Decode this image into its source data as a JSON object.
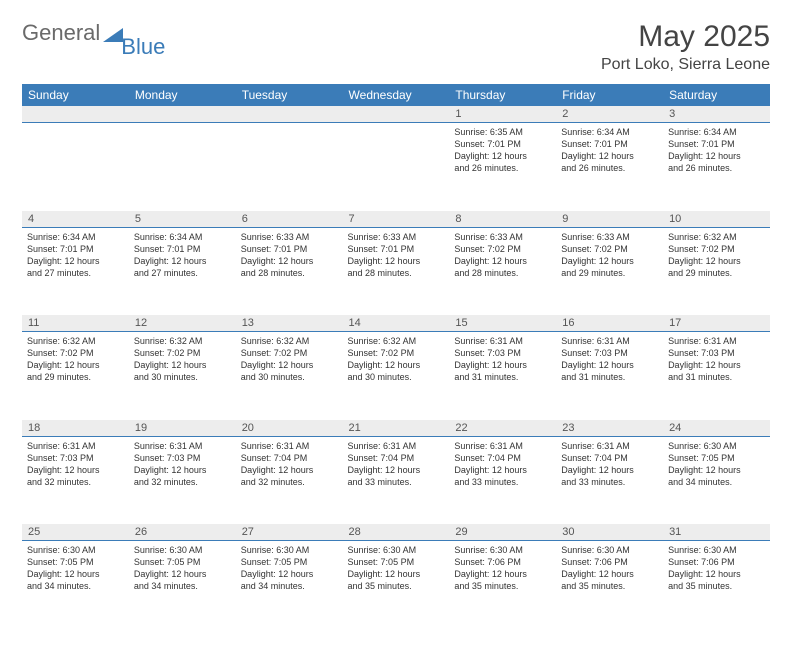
{
  "brand": {
    "part1": "General",
    "part2": "Blue"
  },
  "title": "May 2025",
  "location": "Port Loko, Sierra Leone",
  "colors": {
    "header_bg": "#3b7cb8",
    "header_fg": "#ffffff",
    "daynum_bg": "#ededed",
    "rule": "#3b7cb8",
    "text": "#333333",
    "brand_gray": "#6a6a6a",
    "brand_blue": "#3b7cb8"
  },
  "weekdays": [
    "Sunday",
    "Monday",
    "Tuesday",
    "Wednesday",
    "Thursday",
    "Friday",
    "Saturday"
  ],
  "weeks": [
    {
      "nums": [
        "",
        "",
        "",
        "",
        "1",
        "2",
        "3"
      ],
      "cells": [
        null,
        null,
        null,
        null,
        {
          "sunrise": "Sunrise: 6:35 AM",
          "sunset": "Sunset: 7:01 PM",
          "day1": "Daylight: 12 hours",
          "day2": "and 26 minutes."
        },
        {
          "sunrise": "Sunrise: 6:34 AM",
          "sunset": "Sunset: 7:01 PM",
          "day1": "Daylight: 12 hours",
          "day2": "and 26 minutes."
        },
        {
          "sunrise": "Sunrise: 6:34 AM",
          "sunset": "Sunset: 7:01 PM",
          "day1": "Daylight: 12 hours",
          "day2": "and 26 minutes."
        }
      ]
    },
    {
      "nums": [
        "4",
        "5",
        "6",
        "7",
        "8",
        "9",
        "10"
      ],
      "cells": [
        {
          "sunrise": "Sunrise: 6:34 AM",
          "sunset": "Sunset: 7:01 PM",
          "day1": "Daylight: 12 hours",
          "day2": "and 27 minutes."
        },
        {
          "sunrise": "Sunrise: 6:34 AM",
          "sunset": "Sunset: 7:01 PM",
          "day1": "Daylight: 12 hours",
          "day2": "and 27 minutes."
        },
        {
          "sunrise": "Sunrise: 6:33 AM",
          "sunset": "Sunset: 7:01 PM",
          "day1": "Daylight: 12 hours",
          "day2": "and 28 minutes."
        },
        {
          "sunrise": "Sunrise: 6:33 AM",
          "sunset": "Sunset: 7:01 PM",
          "day1": "Daylight: 12 hours",
          "day2": "and 28 minutes."
        },
        {
          "sunrise": "Sunrise: 6:33 AM",
          "sunset": "Sunset: 7:02 PM",
          "day1": "Daylight: 12 hours",
          "day2": "and 28 minutes."
        },
        {
          "sunrise": "Sunrise: 6:33 AM",
          "sunset": "Sunset: 7:02 PM",
          "day1": "Daylight: 12 hours",
          "day2": "and 29 minutes."
        },
        {
          "sunrise": "Sunrise: 6:32 AM",
          "sunset": "Sunset: 7:02 PM",
          "day1": "Daylight: 12 hours",
          "day2": "and 29 minutes."
        }
      ]
    },
    {
      "nums": [
        "11",
        "12",
        "13",
        "14",
        "15",
        "16",
        "17"
      ],
      "cells": [
        {
          "sunrise": "Sunrise: 6:32 AM",
          "sunset": "Sunset: 7:02 PM",
          "day1": "Daylight: 12 hours",
          "day2": "and 29 minutes."
        },
        {
          "sunrise": "Sunrise: 6:32 AM",
          "sunset": "Sunset: 7:02 PM",
          "day1": "Daylight: 12 hours",
          "day2": "and 30 minutes."
        },
        {
          "sunrise": "Sunrise: 6:32 AM",
          "sunset": "Sunset: 7:02 PM",
          "day1": "Daylight: 12 hours",
          "day2": "and 30 minutes."
        },
        {
          "sunrise": "Sunrise: 6:32 AM",
          "sunset": "Sunset: 7:02 PM",
          "day1": "Daylight: 12 hours",
          "day2": "and 30 minutes."
        },
        {
          "sunrise": "Sunrise: 6:31 AM",
          "sunset": "Sunset: 7:03 PM",
          "day1": "Daylight: 12 hours",
          "day2": "and 31 minutes."
        },
        {
          "sunrise": "Sunrise: 6:31 AM",
          "sunset": "Sunset: 7:03 PM",
          "day1": "Daylight: 12 hours",
          "day2": "and 31 minutes."
        },
        {
          "sunrise": "Sunrise: 6:31 AM",
          "sunset": "Sunset: 7:03 PM",
          "day1": "Daylight: 12 hours",
          "day2": "and 31 minutes."
        }
      ]
    },
    {
      "nums": [
        "18",
        "19",
        "20",
        "21",
        "22",
        "23",
        "24"
      ],
      "cells": [
        {
          "sunrise": "Sunrise: 6:31 AM",
          "sunset": "Sunset: 7:03 PM",
          "day1": "Daylight: 12 hours",
          "day2": "and 32 minutes."
        },
        {
          "sunrise": "Sunrise: 6:31 AM",
          "sunset": "Sunset: 7:03 PM",
          "day1": "Daylight: 12 hours",
          "day2": "and 32 minutes."
        },
        {
          "sunrise": "Sunrise: 6:31 AM",
          "sunset": "Sunset: 7:04 PM",
          "day1": "Daylight: 12 hours",
          "day2": "and 32 minutes."
        },
        {
          "sunrise": "Sunrise: 6:31 AM",
          "sunset": "Sunset: 7:04 PM",
          "day1": "Daylight: 12 hours",
          "day2": "and 33 minutes."
        },
        {
          "sunrise": "Sunrise: 6:31 AM",
          "sunset": "Sunset: 7:04 PM",
          "day1": "Daylight: 12 hours",
          "day2": "and 33 minutes."
        },
        {
          "sunrise": "Sunrise: 6:31 AM",
          "sunset": "Sunset: 7:04 PM",
          "day1": "Daylight: 12 hours",
          "day2": "and 33 minutes."
        },
        {
          "sunrise": "Sunrise: 6:30 AM",
          "sunset": "Sunset: 7:05 PM",
          "day1": "Daylight: 12 hours",
          "day2": "and 34 minutes."
        }
      ]
    },
    {
      "nums": [
        "25",
        "26",
        "27",
        "28",
        "29",
        "30",
        "31"
      ],
      "cells": [
        {
          "sunrise": "Sunrise: 6:30 AM",
          "sunset": "Sunset: 7:05 PM",
          "day1": "Daylight: 12 hours",
          "day2": "and 34 minutes."
        },
        {
          "sunrise": "Sunrise: 6:30 AM",
          "sunset": "Sunset: 7:05 PM",
          "day1": "Daylight: 12 hours",
          "day2": "and 34 minutes."
        },
        {
          "sunrise": "Sunrise: 6:30 AM",
          "sunset": "Sunset: 7:05 PM",
          "day1": "Daylight: 12 hours",
          "day2": "and 34 minutes."
        },
        {
          "sunrise": "Sunrise: 6:30 AM",
          "sunset": "Sunset: 7:05 PM",
          "day1": "Daylight: 12 hours",
          "day2": "and 35 minutes."
        },
        {
          "sunrise": "Sunrise: 6:30 AM",
          "sunset": "Sunset: 7:06 PM",
          "day1": "Daylight: 12 hours",
          "day2": "and 35 minutes."
        },
        {
          "sunrise": "Sunrise: 6:30 AM",
          "sunset": "Sunset: 7:06 PM",
          "day1": "Daylight: 12 hours",
          "day2": "and 35 minutes."
        },
        {
          "sunrise": "Sunrise: 6:30 AM",
          "sunset": "Sunset: 7:06 PM",
          "day1": "Daylight: 12 hours",
          "day2": "and 35 minutes."
        }
      ]
    }
  ]
}
